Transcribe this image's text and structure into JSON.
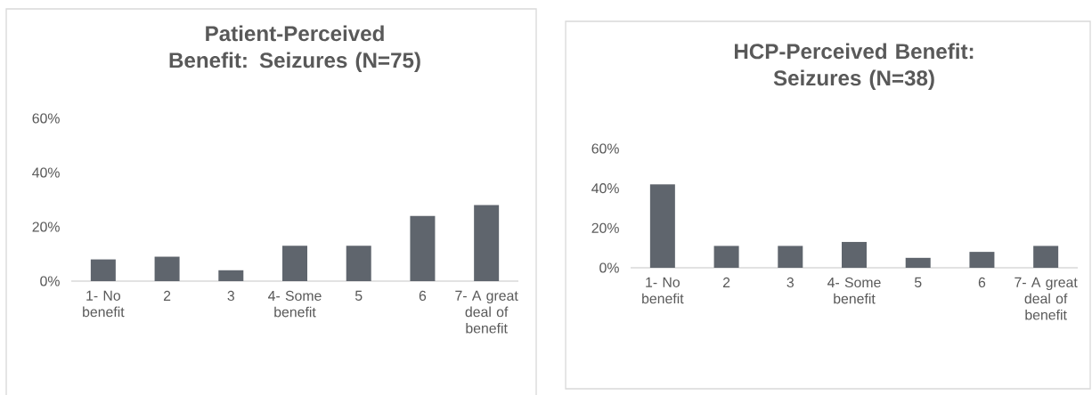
{
  "chart_data": [
    {
      "type": "bar",
      "title": "Patient-Perceived Benefit: Seizures (N=75)",
      "categories": [
        "1- No benefit",
        "2",
        "3",
        "4- Some benefit",
        "5",
        "6",
        "7- A great deal of benefit"
      ],
      "values": [
        8,
        9,
        4,
        13,
        13,
        24,
        28
      ],
      "color": "#5f656d",
      "ylim": [
        0,
        60
      ],
      "yticks": [
        {
          "value": 0,
          "label": "0%"
        },
        {
          "value": 20,
          "label": "20%"
        },
        {
          "value": 40,
          "label": "40%"
        },
        {
          "value": 60,
          "label": "60%"
        }
      ]
    },
    {
      "type": "bar",
      "title": "HCP-Perceived Benefit: Seizures (N=38)",
      "categories": [
        "1- No benefit",
        "2",
        "3",
        "4- Some benefit",
        "5",
        "6",
        "7- A great deal of benefit"
      ],
      "values": [
        42,
        11,
        11,
        13,
        5,
        8,
        11
      ],
      "color": "#5f656d",
      "ylim": [
        0,
        60
      ],
      "yticks": [
        {
          "value": 0,
          "label": "0%"
        },
        {
          "value": 20,
          "label": "20%"
        },
        {
          "value": 40,
          "label": "40%"
        },
        {
          "value": 60,
          "label": "60%"
        }
      ]
    }
  ]
}
